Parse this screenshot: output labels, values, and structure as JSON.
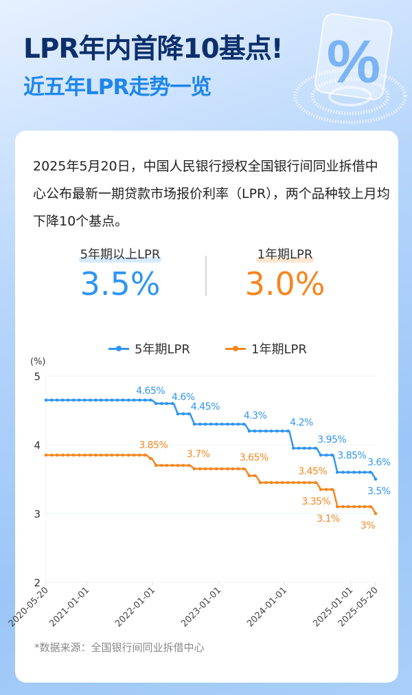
{
  "header": {
    "title": "LPR年内首降10基点!",
    "subtitle": "近五年LPR走势一览"
  },
  "intro": "2025年5月20日，中国人民银行授权全国银行间同业拆借中心公布最新一期贷款市场报价利率（LPR），两个品种较上月均下降10个基点。",
  "stats": [
    {
      "label": "5年期以上LPR",
      "value": "3.5%",
      "color": "#2f95f2"
    },
    {
      "label": "1年期LPR",
      "value": "3.0%",
      "color": "#f5861f"
    }
  ],
  "source": "*数据来源：全国银行间同业拆借中心",
  "chart_data": {
    "type": "line",
    "step": true,
    "ylabel": "(%)",
    "ylim": [
      2,
      5
    ],
    "yticks": [
      2,
      3,
      4,
      5
    ],
    "xlim": [
      "2020-05-20",
      "2025-05-20"
    ],
    "xticks": [
      "2020-05-20",
      "2021-01-01",
      "2022-01-01",
      "2023-01-01",
      "2024-01-01",
      "2025-01-01",
      "2025-05-20"
    ],
    "grid": true,
    "legend": "top",
    "x_start": "2020-05",
    "x_end": "2025-05",
    "x_frequency": "monthly, 20th",
    "series": [
      {
        "name": "5年期LPR",
        "color": "#2f95f2",
        "values": [
          4.65,
          4.65,
          4.65,
          4.65,
          4.65,
          4.65,
          4.65,
          4.65,
          4.65,
          4.65,
          4.65,
          4.65,
          4.65,
          4.65,
          4.65,
          4.65,
          4.65,
          4.65,
          4.65,
          4.65,
          4.6,
          4.6,
          4.6,
          4.6,
          4.45,
          4.45,
          4.45,
          4.3,
          4.3,
          4.3,
          4.3,
          4.3,
          4.3,
          4.3,
          4.3,
          4.3,
          4.3,
          4.2,
          4.2,
          4.2,
          4.2,
          4.2,
          4.2,
          4.2,
          4.2,
          3.95,
          3.95,
          3.95,
          3.95,
          3.95,
          3.85,
          3.85,
          3.85,
          3.6,
          3.6,
          3.6,
          3.6,
          3.6,
          3.6,
          3.6,
          3.5
        ],
        "labels": [
          {
            "i": 19,
            "text": "4.65%"
          },
          {
            "i": 23,
            "text": "4.6%"
          },
          {
            "i": 26,
            "text": "4.45%"
          },
          {
            "i": 36,
            "text": "4.3%"
          },
          {
            "i": 44,
            "text": "4.2%"
          },
          {
            "i": 49,
            "text": "3.95%"
          },
          {
            "i": 52,
            "text": "3.85%"
          },
          {
            "i": 59,
            "text": "3.6%"
          },
          {
            "i": 60,
            "text": "3.5%"
          }
        ]
      },
      {
        "name": "1年期LPR",
        "color": "#f5861f",
        "values": [
          3.85,
          3.85,
          3.85,
          3.85,
          3.85,
          3.85,
          3.85,
          3.85,
          3.85,
          3.85,
          3.85,
          3.85,
          3.85,
          3.85,
          3.85,
          3.85,
          3.85,
          3.85,
          3.85,
          3.8,
          3.7,
          3.7,
          3.7,
          3.7,
          3.7,
          3.7,
          3.7,
          3.65,
          3.65,
          3.65,
          3.65,
          3.65,
          3.65,
          3.65,
          3.65,
          3.65,
          3.65,
          3.55,
          3.55,
          3.45,
          3.45,
          3.45,
          3.45,
          3.45,
          3.45,
          3.45,
          3.45,
          3.45,
          3.45,
          3.45,
          3.35,
          3.35,
          3.35,
          3.1,
          3.1,
          3.1,
          3.1,
          3.1,
          3.1,
          3.1,
          3.0
        ],
        "labels": [
          {
            "i": 18,
            "text": "3.85%"
          },
          {
            "i": 26,
            "text": "3.7%"
          },
          {
            "i": 36,
            "text": "3.65%"
          },
          {
            "i": 49,
            "text": "3.45%"
          },
          {
            "i": 52,
            "text": "3.35%"
          },
          {
            "i": 53,
            "text": "3.1%"
          },
          {
            "i": 60,
            "text": "3%"
          }
        ]
      }
    ]
  }
}
